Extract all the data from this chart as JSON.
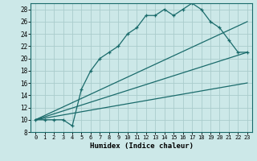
{
  "xlabel": "Humidex (Indice chaleur)",
  "bg_color": "#cce8e8",
  "grid_color": "#aacccc",
  "line_color": "#1a6b6b",
  "xlim": [
    -0.5,
    23.5
  ],
  "ylim": [
    8,
    29
  ],
  "xticks": [
    0,
    1,
    2,
    3,
    4,
    5,
    6,
    7,
    8,
    9,
    10,
    11,
    12,
    13,
    14,
    15,
    16,
    17,
    18,
    19,
    20,
    21,
    22,
    23
  ],
  "yticks": [
    8,
    10,
    12,
    14,
    16,
    18,
    20,
    22,
    24,
    26,
    28
  ],
  "main_x": [
    0,
    1,
    2,
    3,
    4,
    5,
    6,
    7,
    8,
    9,
    10,
    11,
    12,
    13,
    14,
    15,
    16,
    17,
    18,
    19,
    20,
    21,
    22,
    23
  ],
  "main_y": [
    10,
    10,
    10,
    10,
    9,
    15,
    18,
    20,
    21,
    22,
    24,
    25,
    27,
    27,
    28,
    27,
    28,
    29,
    28,
    26,
    25,
    23,
    21,
    21
  ],
  "line1_x": [
    0,
    23
  ],
  "line1_y": [
    10,
    21
  ],
  "line2_x": [
    0,
    23
  ],
  "line2_y": [
    10,
    26
  ],
  "line3_x": [
    0,
    23
  ],
  "line3_y": [
    10,
    16
  ]
}
